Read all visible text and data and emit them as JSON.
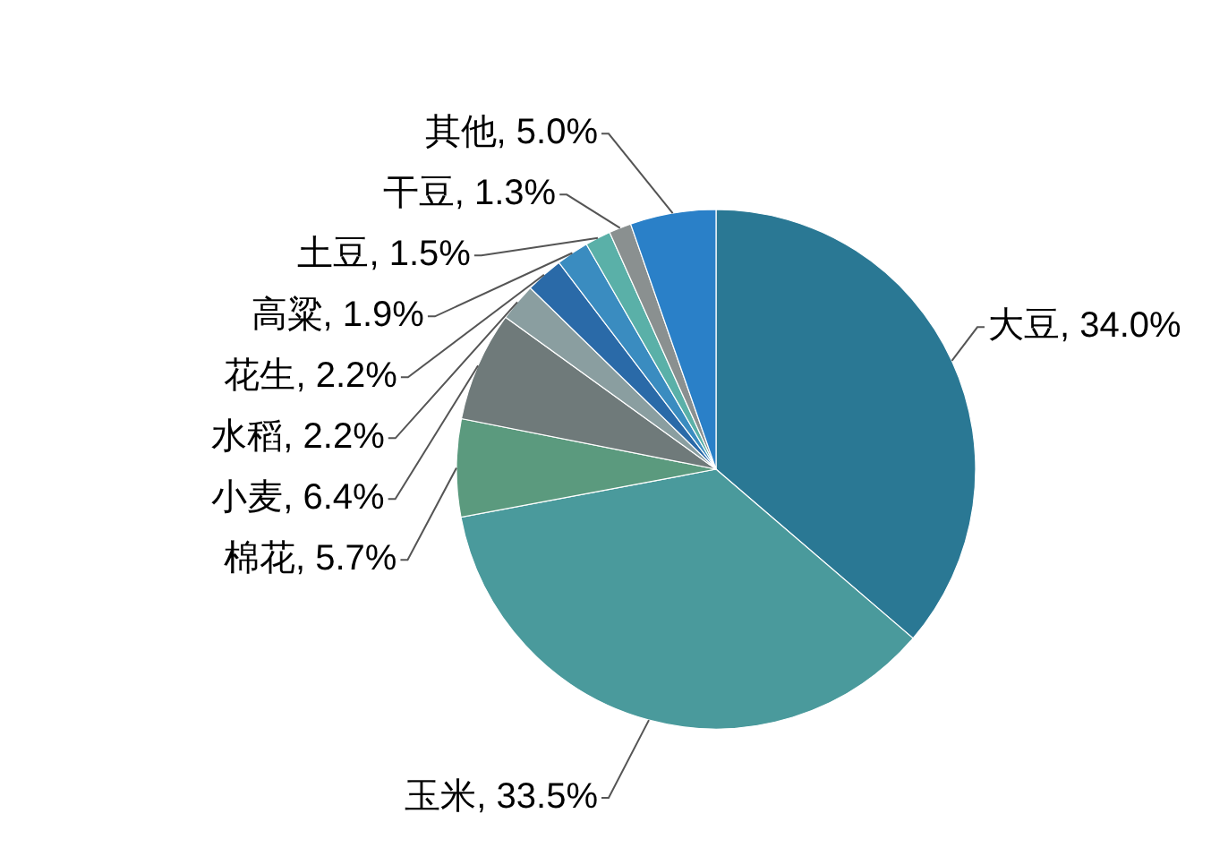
{
  "chart_data": {
    "type": "pie",
    "categories": [
      "大豆",
      "玉米",
      "棉花",
      "小麦",
      "水稻",
      "花生",
      "高粱",
      "土豆",
      "干豆",
      "其他"
    ],
    "values": [
      34.0,
      33.5,
      5.7,
      6.4,
      2.2,
      2.2,
      1.9,
      1.5,
      1.3,
      5.0
    ],
    "value_labels": [
      ", 34.0%",
      ", 33.5%",
      ", 5.7%",
      ", 6.4%",
      ", 2.2%",
      ", 2.2%",
      ", 1.9%",
      ", 1.5%",
      ", 1.3%",
      ", 5.0%"
    ],
    "colors": [
      "#2a7894",
      "#4a9a9c",
      "#5b9a7e",
      "#6f7a7a",
      "#8a9ea0",
      "#2a6aa8",
      "#3a8cc0",
      "#5ab0a8",
      "#8a9090",
      "#2a80c8"
    ]
  }
}
